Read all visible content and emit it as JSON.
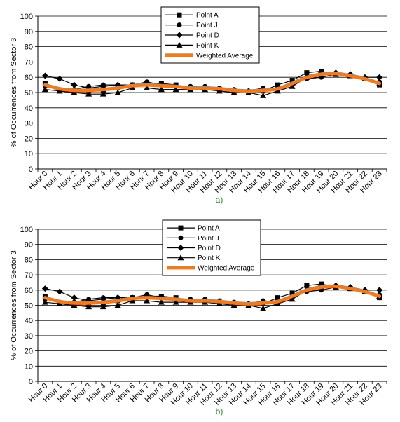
{
  "chart_data": [
    {
      "type": "line",
      "panel_label": "a)",
      "ylabel": "% of Occurrences from Sector 3",
      "xlabel": "",
      "ylim": [
        0,
        100
      ],
      "yticks": [
        0,
        10,
        20,
        30,
        40,
        50,
        60,
        70,
        80,
        90,
        100
      ],
      "grid": true,
      "legend_position": "top-center",
      "categories": [
        "Hour 0",
        "Hour 1",
        "Hour 2",
        "Hour 3",
        "Hour 4",
        "Hour 5",
        "Hour 6",
        "Hour 7",
        "Hour 8",
        "Hour 9",
        "Hour 10",
        "Hour 11",
        "Hour 12",
        "Hour 13",
        "Hour 14",
        "Hour 15",
        "Hour 16",
        "Hour 17",
        "Hour 18",
        "Hour 19",
        "Hour 20",
        "Hour 21",
        "Hour 22",
        "Hour 23"
      ],
      "series": [
        {
          "name": "Point A",
          "marker": "square",
          "color": "#000000",
          "values": [
            56,
            51,
            50,
            51,
            51,
            53,
            55,
            56,
            56,
            55,
            53,
            53,
            52,
            51,
            50,
            51,
            55,
            58,
            63,
            64,
            62,
            61,
            59,
            55
          ]
        },
        {
          "name": "Point J",
          "marker": "circle",
          "color": "#000000",
          "values": [
            54,
            52,
            52,
            54,
            55,
            55,
            55,
            57,
            55,
            54,
            54,
            54,
            53,
            52,
            51,
            53,
            52,
            56,
            59,
            60,
            62,
            61,
            59,
            57
          ]
        },
        {
          "name": "Point D",
          "marker": "diamond",
          "color": "#000000",
          "values": [
            61,
            59,
            55,
            53,
            54,
            55,
            55,
            56,
            55,
            54,
            53,
            53,
            52,
            51,
            51,
            52,
            52,
            55,
            60,
            63,
            63,
            62,
            60,
            60
          ]
        },
        {
          "name": "Point K",
          "marker": "triangle",
          "color": "#000000",
          "values": [
            52,
            51,
            50,
            49,
            49,
            50,
            53,
            53,
            52,
            52,
            52,
            52,
            51,
            50,
            50,
            48,
            51,
            54,
            60,
            62,
            62,
            61,
            59,
            56
          ]
        },
        {
          "name": "Weighted Average",
          "marker": "none",
          "color": "#f07a1f",
          "values": [
            55,
            52.5,
            51.5,
            51.5,
            52,
            53,
            54.5,
            55,
            54.5,
            54,
            53,
            53,
            52.5,
            51.5,
            51,
            51.5,
            52.5,
            56,
            60,
            62,
            62.5,
            61,
            59,
            56
          ]
        }
      ]
    },
    {
      "type": "line",
      "panel_label": "b)",
      "ylabel": "% of Occurrences from Sector 3",
      "xlabel": "",
      "ylim": [
        0,
        100
      ],
      "yticks": [
        0,
        10,
        20,
        30,
        40,
        50,
        60,
        70,
        80,
        90,
        100
      ],
      "grid": true,
      "legend_position": "top-center",
      "categories": [
        "Hour 0",
        "Hour 1",
        "Hour 2",
        "Hour 3",
        "Hour 4",
        "Hour 5",
        "Hour 6",
        "Hour 7",
        "Hour 8",
        "Hour 9",
        "Hour 10",
        "Hour 11",
        "Hour 12",
        "Hour 13",
        "Hour 14",
        "Hour 15",
        "Hour 16",
        "Hour 17",
        "Hour 18",
        "Hour 19",
        "Hour 20",
        "Hour 21",
        "Hour 22",
        "Hour 23"
      ],
      "series": [
        {
          "name": "Point A",
          "marker": "square",
          "color": "#000000",
          "values": [
            56,
            51,
            50,
            51,
            51,
            53,
            55,
            56,
            56,
            55,
            53,
            53,
            52,
            51,
            50,
            51,
            55,
            58,
            63,
            64,
            62,
            61,
            59,
            55
          ]
        },
        {
          "name": "Point J",
          "marker": "circle",
          "color": "#000000",
          "values": [
            54,
            52,
            52,
            54,
            55,
            55,
            55,
            57,
            55,
            54,
            54,
            54,
            53,
            52,
            51,
            53,
            52,
            56,
            59,
            60,
            62,
            61,
            59,
            57
          ]
        },
        {
          "name": "Point D",
          "marker": "diamond",
          "color": "#000000",
          "values": [
            61,
            59,
            55,
            53,
            54,
            55,
            55,
            56,
            55,
            54,
            53,
            53,
            52,
            51,
            51,
            52,
            52,
            55,
            60,
            63,
            63,
            62,
            60,
            60
          ]
        },
        {
          "name": "Point K",
          "marker": "triangle",
          "color": "#000000",
          "values": [
            52,
            51,
            50,
            49,
            49,
            50,
            53,
            53,
            52,
            52,
            52,
            52,
            51,
            50,
            50,
            48,
            51,
            54,
            60,
            62,
            62,
            61,
            59,
            56
          ]
        },
        {
          "name": "Weighted Average",
          "marker": "none",
          "color": "#f07a1f",
          "values": [
            55,
            52.5,
            51.5,
            51.5,
            52,
            53,
            54.5,
            55,
            54.5,
            54,
            53,
            53,
            52.5,
            51.5,
            51,
            51.5,
            52.5,
            56,
            60,
            62,
            62.5,
            61,
            59,
            56
          ]
        }
      ]
    }
  ]
}
